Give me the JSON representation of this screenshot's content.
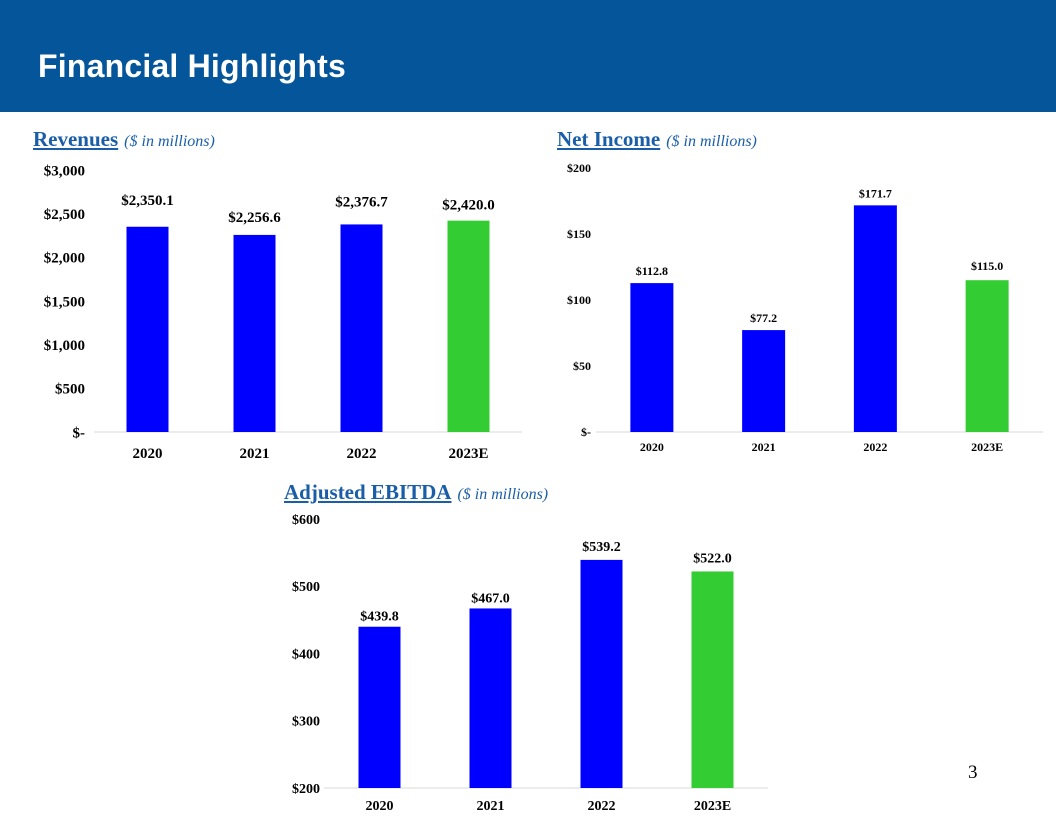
{
  "header": {
    "title": "Financial Highlights"
  },
  "page_number": "3",
  "colors": {
    "header_bg": "#05559a",
    "title_text": "#1a5ea8",
    "actual_bar": "#0000ff",
    "estimate_bar": "#33cc33"
  },
  "chart_data": [
    {
      "id": "revenues",
      "type": "bar",
      "title": "Revenues",
      "subtitle": "($ in millions)",
      "categories": [
        "2020",
        "2021",
        "2022",
        "2023E"
      ],
      "values": [
        2350.1,
        2256.6,
        2376.7,
        2420.0
      ],
      "data_labels": [
        "$2,350.1",
        "$2,256.6",
        "$2,376.7",
        "$2,420.0"
      ],
      "estimate_index": 3,
      "ylim": [
        0,
        3000
      ],
      "yticks": [
        0,
        500,
        1000,
        1500,
        2000,
        2500,
        3000
      ],
      "ytick_labels": [
        "$-",
        "$500",
        "$1,000",
        "$1,500",
        "$2,000",
        "$2,500",
        "$3,000"
      ],
      "xlabel": "",
      "ylabel": "",
      "grid": false
    },
    {
      "id": "net-income",
      "type": "bar",
      "title": "Net Income",
      "subtitle": "($ in millions)",
      "categories": [
        "2020",
        "2021",
        "2022",
        "2023E"
      ],
      "values": [
        112.8,
        77.2,
        171.7,
        115.0
      ],
      "data_labels": [
        "$112.8",
        "$77.2",
        "$171.7",
        "$115.0"
      ],
      "estimate_index": 3,
      "ylim": [
        0,
        200
      ],
      "yticks": [
        0,
        50,
        100,
        150,
        200
      ],
      "ytick_labels": [
        "$-",
        "$50",
        "$100",
        "$150",
        "$200"
      ],
      "xlabel": "",
      "ylabel": "",
      "grid": false
    },
    {
      "id": "adjusted-ebitda",
      "type": "bar",
      "title": "Adjusted EBITDA",
      "subtitle": "($ in millions)",
      "categories": [
        "2020",
        "2021",
        "2022",
        "2023E"
      ],
      "values": [
        439.8,
        467.0,
        539.2,
        522.0
      ],
      "data_labels": [
        "$439.8",
        "$467.0",
        "$539.2",
        "$522.0"
      ],
      "estimate_index": 3,
      "ylim": [
        200,
        600
      ],
      "yticks": [
        200,
        300,
        400,
        500,
        600
      ],
      "ytick_labels": [
        "$200",
        "$300",
        "$400",
        "$500",
        "$600"
      ],
      "xlabel": "",
      "ylabel": "",
      "grid": false
    }
  ]
}
